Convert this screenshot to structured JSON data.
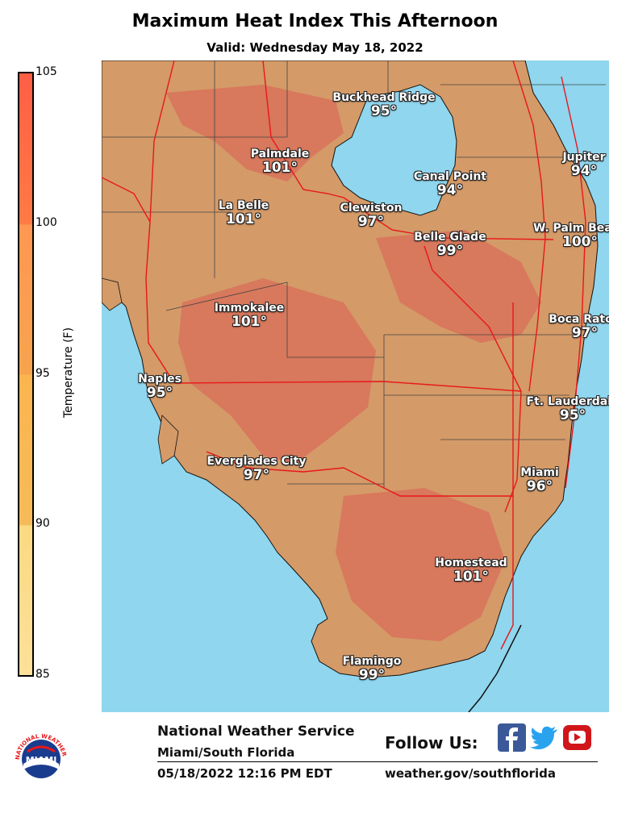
{
  "header": {
    "title": "Maximum Heat Index This Afternoon",
    "subtitle": "Valid: Wednesday May 18, 2022"
  },
  "colorbar": {
    "label": "Temperature (F)",
    "ticks": [
      "105",
      "100",
      "95",
      "90",
      "85"
    ],
    "colors": [
      "#ff6a45",
      "#f8924f",
      "#f8b553",
      "#fdd98a"
    ]
  },
  "map": {
    "water_color": "#8fd6ee",
    "land_color": "#d49a68",
    "hot_color": "#d8785c",
    "locations": [
      {
        "name": "Buckhead Ridge",
        "temp": "95°"
      },
      {
        "name": "Palmdale",
        "temp": "101°"
      },
      {
        "name": "Canal Point",
        "temp": "94°"
      },
      {
        "name": "Jupiter",
        "temp": "94°"
      },
      {
        "name": "La Belle",
        "temp": "101°"
      },
      {
        "name": "Clewiston",
        "temp": "97°"
      },
      {
        "name": "W. Palm Beach",
        "temp": "100°"
      },
      {
        "name": "Belle Glade",
        "temp": "99°"
      },
      {
        "name": "Immokalee",
        "temp": "101°"
      },
      {
        "name": "Boca Raton",
        "temp": "97°"
      },
      {
        "name": "Naples",
        "temp": "95°"
      },
      {
        "name": "Ft. Lauderdale",
        "temp": "95°"
      },
      {
        "name": "Everglades City",
        "temp": "97°"
      },
      {
        "name": "Miami",
        "temp": "96°"
      },
      {
        "name": "Homestead",
        "temp": "101°"
      },
      {
        "name": "Flamingo",
        "temp": "99°"
      }
    ]
  },
  "footer": {
    "logo_text": "MIAMI",
    "logo_ring_text": "NATIONAL WEATHER SERVICE",
    "org": "National Weather Service",
    "office": "Miami/South Florida",
    "timestamp": "05/18/2022 12:16 PM EDT",
    "follow": "Follow Us:",
    "url": "weather.gov/southflorida"
  }
}
